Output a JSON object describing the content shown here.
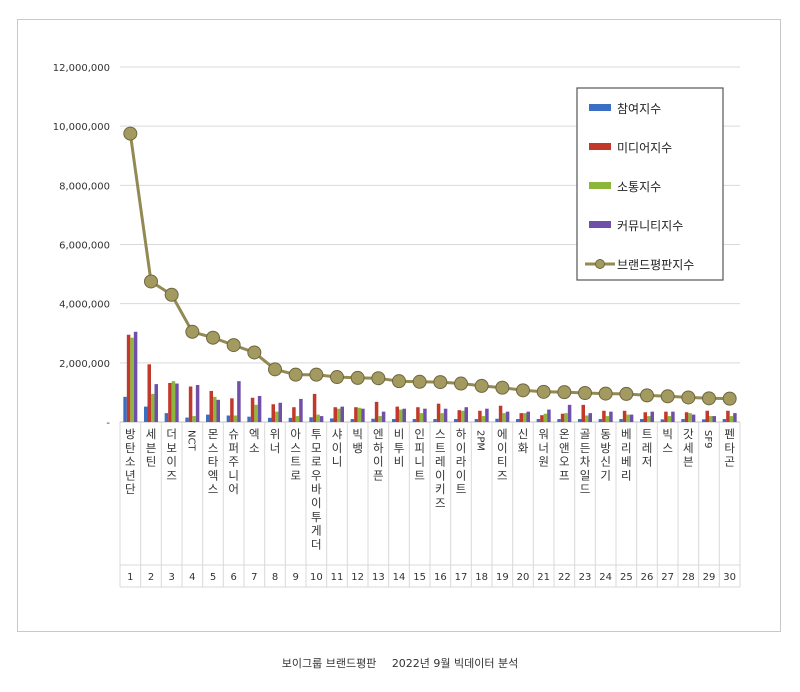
{
  "chart_data": {
    "type": "bar",
    "categories": [
      "방탄소년단",
      "세븐틴",
      "더보이즈",
      "NCT",
      "몬스타엑스",
      "슈퍼주니어",
      "엑소",
      "위너",
      "아스트로",
      "투모로우바이투게더",
      "샤이니",
      "빅뱅",
      "엔하이픈",
      "비투비",
      "인피니트",
      "스트레이키즈",
      "하이라이트",
      "2PM",
      "에이티즈",
      "신화",
      "워너원",
      "온앤오프",
      "골든차일드",
      "동방신기",
      "베리베리",
      "트레저",
      "빅스",
      "갓세븐",
      "SF9",
      "펜타곤"
    ],
    "ranks": [
      "1",
      "2",
      "3",
      "4",
      "5",
      "6",
      "7",
      "8",
      "9",
      "10",
      "11",
      "12",
      "13",
      "14",
      "15",
      "16",
      "17",
      "18",
      "19",
      "20",
      "21",
      "22",
      "23",
      "24",
      "25",
      "26",
      "27",
      "28",
      "29",
      "30"
    ],
    "ylim": [
      0,
      12000000
    ],
    "y_ticks": [
      "-",
      "2,000,000",
      "4,000,000",
      "6,000,000",
      "8,000,000",
      "10,000,000",
      "12,000,000"
    ],
    "grid": true,
    "legend_position": "top-right",
    "series": [
      {
        "name": "참여지수",
        "kind": "bar",
        "color": "#3b6fc4",
        "values": [
          850000,
          520000,
          300000,
          150000,
          250000,
          220000,
          180000,
          140000,
          140000,
          160000,
          120000,
          100000,
          110000,
          100000,
          100000,
          100000,
          100000,
          100000,
          110000,
          100000,
          100000,
          100000,
          100000,
          100000,
          100000,
          100000,
          90000,
          100000,
          90000,
          100000
        ]
      },
      {
        "name": "미디어지수",
        "kind": "bar",
        "color": "#c0392b",
        "values": [
          2950000,
          1950000,
          1320000,
          1200000,
          1050000,
          800000,
          820000,
          600000,
          500000,
          950000,
          500000,
          500000,
          680000,
          520000,
          500000,
          620000,
          400000,
          380000,
          550000,
          300000,
          230000,
          280000,
          580000,
          380000,
          380000,
          330000,
          350000,
          330000,
          380000,
          380000
        ]
      },
      {
        "name": "소통지수",
        "kind": "bar",
        "color": "#8db63c",
        "values": [
          2850000,
          950000,
          1380000,
          200000,
          850000,
          220000,
          580000,
          350000,
          200000,
          250000,
          450000,
          480000,
          200000,
          420000,
          300000,
          300000,
          380000,
          200000,
          300000,
          300000,
          280000,
          300000,
          220000,
          200000,
          250000,
          200000,
          200000,
          300000,
          200000,
          200000
        ]
      },
      {
        "name": "커뮤니티지수",
        "kind": "bar",
        "color": "#6f4fa8",
        "values": [
          3050000,
          1280000,
          1300000,
          1250000,
          750000,
          1380000,
          880000,
          650000,
          780000,
          200000,
          520000,
          450000,
          350000,
          450000,
          450000,
          450000,
          500000,
          450000,
          350000,
          350000,
          420000,
          580000,
          300000,
          350000,
          250000,
          350000,
          350000,
          250000,
          200000,
          300000
        ]
      },
      {
        "name": "브랜드평판지수",
        "kind": "line",
        "color": "#938953",
        "values": [
          9750000,
          4750000,
          4300000,
          3050000,
          2850000,
          2600000,
          2350000,
          1780000,
          1600000,
          1600000,
          1520000,
          1490000,
          1480000,
          1380000,
          1360000,
          1350000,
          1300000,
          1220000,
          1160000,
          1070000,
          1020000,
          1010000,
          980000,
          960000,
          950000,
          900000,
          870000,
          830000,
          800000,
          790000
        ]
      }
    ]
  },
  "caption": {
    "left": "보이그룹 브랜드평판",
    "right": "2022년 9월 빅데이터 분석"
  }
}
